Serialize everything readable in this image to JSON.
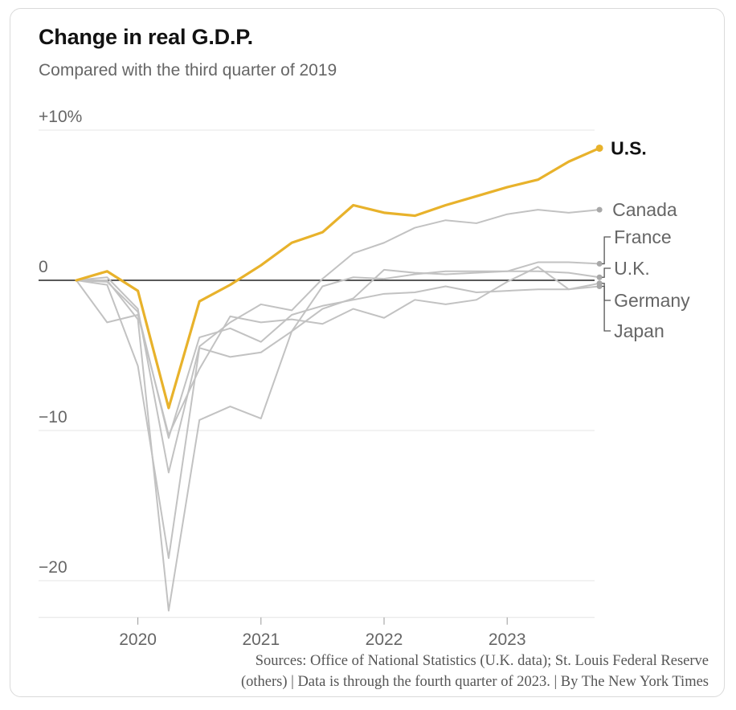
{
  "header": {
    "title": "Change in real G.D.P.",
    "subtitle": "Compared with the third quarter of 2019"
  },
  "footer": {
    "source_line1": "Sources: Office of National Statistics (U.K. data); St. Louis Federal Reserve",
    "source_line2": "(others) | Data is through the fourth quarter of 2023. | By The New York Times"
  },
  "colors": {
    "highlight": "#e8b22b",
    "other": "#c2c2c2",
    "zero_line": "#222222",
    "grid": "#e4e4e4"
  },
  "chart_data": {
    "type": "line",
    "title": "Change in real G.D.P.",
    "subtitle": "Compared with the third quarter of 2019",
    "x": [
      "2019 Q3",
      "2019 Q4",
      "2020 Q1",
      "2020 Q2",
      "2020 Q3",
      "2020 Q4",
      "2021 Q1",
      "2021 Q2",
      "2021 Q3",
      "2021 Q4",
      "2022 Q1",
      "2022 Q2",
      "2022 Q3",
      "2022 Q4",
      "2023 Q1",
      "2023 Q2",
      "2023 Q3",
      "2023 Q4"
    ],
    "x_tick_labels": [
      "2020",
      "2021",
      "2022",
      "2023"
    ],
    "y_tick_labels": [
      "+10%",
      "0",
      "−10",
      "−20"
    ],
    "y_ticks": [
      10,
      0,
      -10,
      -20
    ],
    "ylim": [
      -22.5,
      11
    ],
    "grid": true,
    "series": [
      {
        "name": "U.S.",
        "highlight": true,
        "values": [
          0,
          0.6,
          -0.7,
          -8.5,
          -1.4,
          -0.3,
          1.0,
          2.5,
          3.2,
          5.0,
          4.5,
          4.3,
          5.0,
          5.6,
          6.2,
          6.7,
          7.9,
          8.8
        ]
      },
      {
        "name": "Canada",
        "values": [
          0,
          0.2,
          -1.9,
          -12.8,
          -4.4,
          -2.8,
          -1.6,
          -2.0,
          0.1,
          1.8,
          2.5,
          3.5,
          4.0,
          3.8,
          4.4,
          4.7,
          4.5,
          4.7
        ]
      },
      {
        "name": "France",
        "values": [
          0,
          -0.3,
          -5.7,
          -18.5,
          -4.5,
          -5.1,
          -4.8,
          -3.4,
          -0.4,
          0.2,
          0.1,
          0.4,
          0.6,
          0.6,
          0.6,
          1.2,
          1.2,
          1.1
        ]
      },
      {
        "name": "U.K.",
        "values": [
          0,
          0.0,
          -2.6,
          -22.0,
          -9.3,
          -8.4,
          -9.2,
          -3.4,
          -1.9,
          -1.2,
          0.7,
          0.5,
          0.4,
          0.5,
          0.6,
          0.6,
          0.5,
          0.2
        ]
      },
      {
        "name": "Germany",
        "values": [
          0,
          -0.1,
          -2.1,
          -10.5,
          -3.8,
          -3.2,
          -4.1,
          -2.3,
          -1.7,
          -1.3,
          -0.9,
          -0.8,
          -0.4,
          -0.8,
          -0.7,
          -0.6,
          -0.6,
          -0.4
        ]
      },
      {
        "name": "Japan",
        "values": [
          0,
          -2.8,
          -2.3,
          -10.3,
          -5.9,
          -2.4,
          -2.8,
          -2.6,
          -2.9,
          -1.9,
          -2.5,
          -1.3,
          -1.6,
          -1.3,
          -0.1,
          0.9,
          -0.6,
          -0.2
        ]
      }
    ]
  }
}
